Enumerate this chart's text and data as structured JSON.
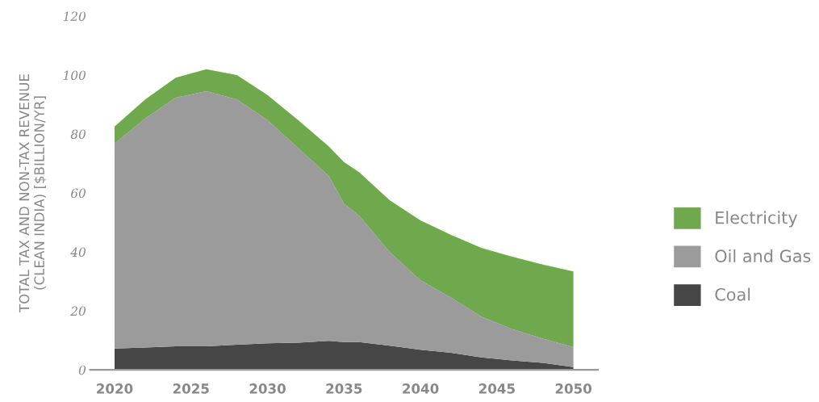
{
  "chart_data": {
    "type": "area",
    "stacked": true,
    "ylabel": "TOTAL TAX AND NON-TAX REVENUE\n(CLEAN INDIA) [$BILLION/YR]",
    "x": [
      2020,
      2022,
      2024,
      2026,
      2028,
      2030,
      2032,
      2034,
      2035,
      2036,
      2038,
      2040,
      2042,
      2044,
      2046,
      2048,
      2050
    ],
    "series": [
      {
        "name": "Coal",
        "color": "#464646",
        "values": [
          7.2,
          7.6,
          8.0,
          8.0,
          8.5,
          9.0,
          9.2,
          9.8,
          9.4,
          9.4,
          8.2,
          6.8,
          5.8,
          4.2,
          3.2,
          2.4,
          0.9
        ]
      },
      {
        "name": "Oil and Gas",
        "color": "#9b9b9b",
        "values": [
          69.5,
          77.7,
          84.3,
          86.5,
          83.2,
          75.7,
          66.0,
          56.0,
          47.0,
          42.8,
          31.7,
          23.6,
          18.7,
          13.8,
          10.6,
          8.2,
          6.8
        ]
      },
      {
        "name": "Electricity",
        "color": "#70a84e",
        "values": [
          5.8,
          6.4,
          6.8,
          7.5,
          8.3,
          8.5,
          9.5,
          10.0,
          14.1,
          14.8,
          17.6,
          20.3,
          21.3,
          23.3,
          24.6,
          25.1,
          25.7
        ]
      }
    ],
    "xlim": [
      2018.4,
      2051.6
    ],
    "xticks": [
      2020,
      2025,
      2030,
      2035,
      2040,
      2045,
      2050
    ],
    "ylim": [
      0,
      120
    ],
    "yticks": [
      0,
      20,
      40,
      60,
      80,
      100,
      120
    ],
    "grid": false,
    "legend": "right"
  }
}
